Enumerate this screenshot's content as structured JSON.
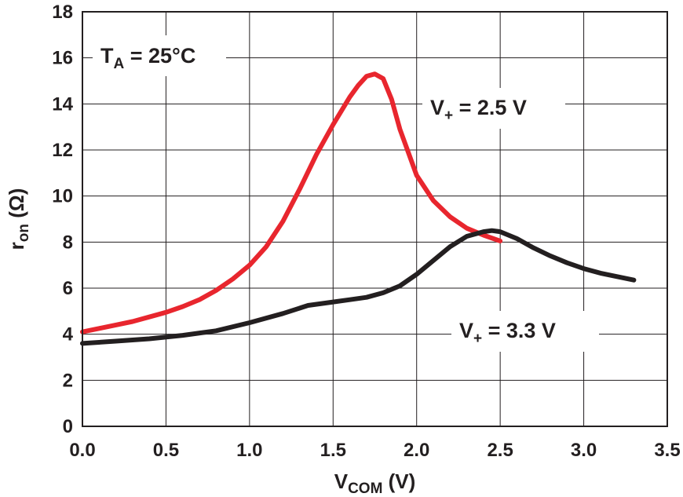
{
  "chart_data": {
    "type": "line",
    "xlabel": {
      "main": "V",
      "sub": "COM",
      "unit": " (V)"
    },
    "ylabel": {
      "main": "r",
      "sub": "on",
      "unit": " (Ω)"
    },
    "xlim": [
      0,
      3.5
    ],
    "ylim": [
      0,
      18
    ],
    "x_ticks": [
      "0.0",
      "0.5",
      "1.0",
      "1.5",
      "2.0",
      "2.5",
      "3.0",
      "3.5"
    ],
    "y_ticks": [
      "0",
      "2",
      "4",
      "6",
      "8",
      "10",
      "12",
      "14",
      "16",
      "18"
    ],
    "grid": true,
    "annotations": {
      "temperature": {
        "main": "T",
        "sub": "A",
        "rest": " = 25°C"
      },
      "series_label_1": {
        "main": "V",
        "sub": "+",
        "rest": " = 2.5  V"
      },
      "series_label_2": {
        "main": "V",
        "sub": "+",
        "rest": " = 3.3  V"
      }
    },
    "series": [
      {
        "name": "V+ = 2.5 V",
        "color": "#e8262e",
        "x": [
          0.0,
          0.1,
          0.2,
          0.3,
          0.4,
          0.5,
          0.6,
          0.7,
          0.8,
          0.9,
          1.0,
          1.1,
          1.2,
          1.3,
          1.4,
          1.5,
          1.6,
          1.65,
          1.7,
          1.75,
          1.8,
          1.85,
          1.9,
          2.0,
          2.1,
          2.2,
          2.3,
          2.4,
          2.5
        ],
        "y": [
          4.1,
          4.25,
          4.4,
          4.55,
          4.75,
          4.95,
          5.2,
          5.5,
          5.9,
          6.4,
          7.0,
          7.8,
          8.9,
          10.3,
          11.8,
          13.1,
          14.3,
          14.8,
          15.2,
          15.3,
          15.1,
          14.2,
          12.9,
          10.9,
          9.8,
          9.1,
          8.6,
          8.3,
          8.05
        ]
      },
      {
        "name": "V+ = 3.3 V",
        "color": "#231f20",
        "x": [
          0.0,
          0.2,
          0.4,
          0.6,
          0.8,
          1.0,
          1.2,
          1.35,
          1.5,
          1.6,
          1.7,
          1.8,
          1.9,
          2.0,
          2.1,
          2.2,
          2.3,
          2.4,
          2.45,
          2.5,
          2.6,
          2.7,
          2.8,
          2.9,
          3.0,
          3.1,
          3.2,
          3.3
        ],
        "y": [
          3.6,
          3.7,
          3.8,
          3.95,
          4.15,
          4.5,
          4.9,
          5.25,
          5.4,
          5.5,
          5.6,
          5.8,
          6.1,
          6.6,
          7.2,
          7.8,
          8.25,
          8.45,
          8.5,
          8.45,
          8.15,
          7.75,
          7.4,
          7.1,
          6.85,
          6.65,
          6.5,
          6.35
        ]
      }
    ]
  }
}
